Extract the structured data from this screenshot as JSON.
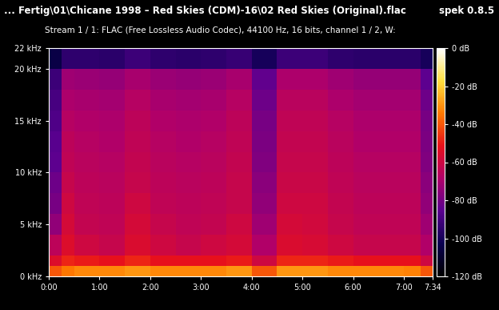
{
  "chart_data": {
    "type": "heatmap",
    "title": "... Fertig\\01\\Chicane 1998 – Red Skies (CDM)-16\\02 Red Skies (Original).flac",
    "subtitle": "Stream 1 / 1: FLAC (Free Lossless Audio Codec), 44100 Hz, 16 bits, channel 1 / 2, W:",
    "annotations": [
      "spek 0.8.5"
    ],
    "x_edges": [
      0,
      15,
      30,
      60,
      90,
      120,
      150,
      180,
      210,
      240,
      270,
      300,
      330,
      360,
      390,
      420,
      440,
      454
    ],
    "y_edges": [
      0,
      1,
      2,
      4,
      6,
      8,
      10,
      12,
      14,
      16,
      18,
      20,
      22
    ],
    "cells": [
      [
        -40,
        -35,
        -32,
        -32,
        -30,
        -32,
        -32,
        -32,
        -30,
        -40,
        -30,
        -30,
        -32,
        -32,
        -32,
        -33,
        -40
      ],
      [
        -55,
        -48,
        -50,
        -52,
        -48,
        -52,
        -52,
        -52,
        -50,
        -60,
        -48,
        -48,
        -50,
        -52,
        -52,
        -52,
        -60
      ],
      [
        -65,
        -55,
        -60,
        -62,
        -56,
        -60,
        -62,
        -60,
        -58,
        -68,
        -56,
        -57,
        -60,
        -62,
        -62,
        -62,
        -68
      ],
      [
        -75,
        -58,
        -63,
        -64,
        -58,
        -62,
        -64,
        -63,
        -60,
        -72,
        -58,
        -59,
        -62,
        -64,
        -64,
        -64,
        -72
      ],
      [
        -80,
        -60,
        -64,
        -65,
        -60,
        -64,
        -65,
        -64,
        -62,
        -75,
        -60,
        -60,
        -63,
        -65,
        -65,
        -65,
        -75
      ],
      [
        -82,
        -62,
        -65,
        -66,
        -62,
        -65,
        -66,
        -65,
        -62,
        -76,
        -61,
        -61,
        -64,
        -66,
        -66,
        -66,
        -76
      ],
      [
        -85,
        -64,
        -66,
        -67,
        -63,
        -66,
        -67,
        -66,
        -63,
        -78,
        -62,
        -62,
        -65,
        -67,
        -67,
        -67,
        -78
      ],
      [
        -86,
        -65,
        -67,
        -68,
        -64,
        -67,
        -68,
        -67,
        -64,
        -79,
        -63,
        -63,
        -66,
        -68,
        -68,
        -68,
        -79
      ],
      [
        -88,
        -67,
        -68,
        -69,
        -65,
        -68,
        -69,
        -68,
        -65,
        -80,
        -64,
        -64,
        -67,
        -69,
        -69,
        -69,
        -80
      ],
      [
        -90,
        -69,
        -70,
        -71,
        -67,
        -70,
        -71,
        -70,
        -67,
        -82,
        -66,
        -66,
        -69,
        -71,
        -71,
        -71,
        -82
      ],
      [
        -92,
        -72,
        -73,
        -74,
        -70,
        -73,
        -74,
        -73,
        -70,
        -84,
        -69,
        -69,
        -72,
        -74,
        -74,
        -74,
        -85
      ],
      [
        -105,
        -95,
        -95,
        -96,
        -92,
        -95,
        -96,
        -95,
        -93,
        -100,
        -92,
        -92,
        -95,
        -96,
        -96,
        -96,
        -100
      ]
    ],
    "xlim": [
      0,
      454
    ],
    "ylim": [
      0,
      22
    ],
    "xticks": [
      {
        "value": 0,
        "label": "0:00"
      },
      {
        "value": 60,
        "label": "1:00"
      },
      {
        "value": 120,
        "label": "2:00"
      },
      {
        "value": 180,
        "label": "3:00"
      },
      {
        "value": 240,
        "label": "4:00"
      },
      {
        "value": 300,
        "label": "5:00"
      },
      {
        "value": 360,
        "label": "6:00"
      },
      {
        "value": 420,
        "label": "7:00"
      },
      {
        "value": 454,
        "label": "7:34"
      }
    ],
    "yticks": [
      {
        "value": 0,
        "label": "0 kHz"
      },
      {
        "value": 5,
        "label": "5 kHz"
      },
      {
        "value": 10,
        "label": "10 kHz"
      },
      {
        "value": 15,
        "label": "15 kHz"
      },
      {
        "value": 20,
        "label": "20 kHz"
      },
      {
        "value": 22,
        "label": "22 kHz"
      }
    ],
    "colorbar_range": [
      -120,
      0
    ],
    "colorbar_ticks": [
      {
        "value": 0,
        "label": "0 dB"
      },
      {
        "value": -20,
        "label": "-20 dB"
      },
      {
        "value": -40,
        "label": "-40 dB"
      },
      {
        "value": -60,
        "label": "-60 dB"
      },
      {
        "value": -80,
        "label": "-80 dB"
      },
      {
        "value": -100,
        "label": "-100 dB"
      },
      {
        "value": -120,
        "label": "-120 dB"
      }
    ],
    "grid": false
  }
}
